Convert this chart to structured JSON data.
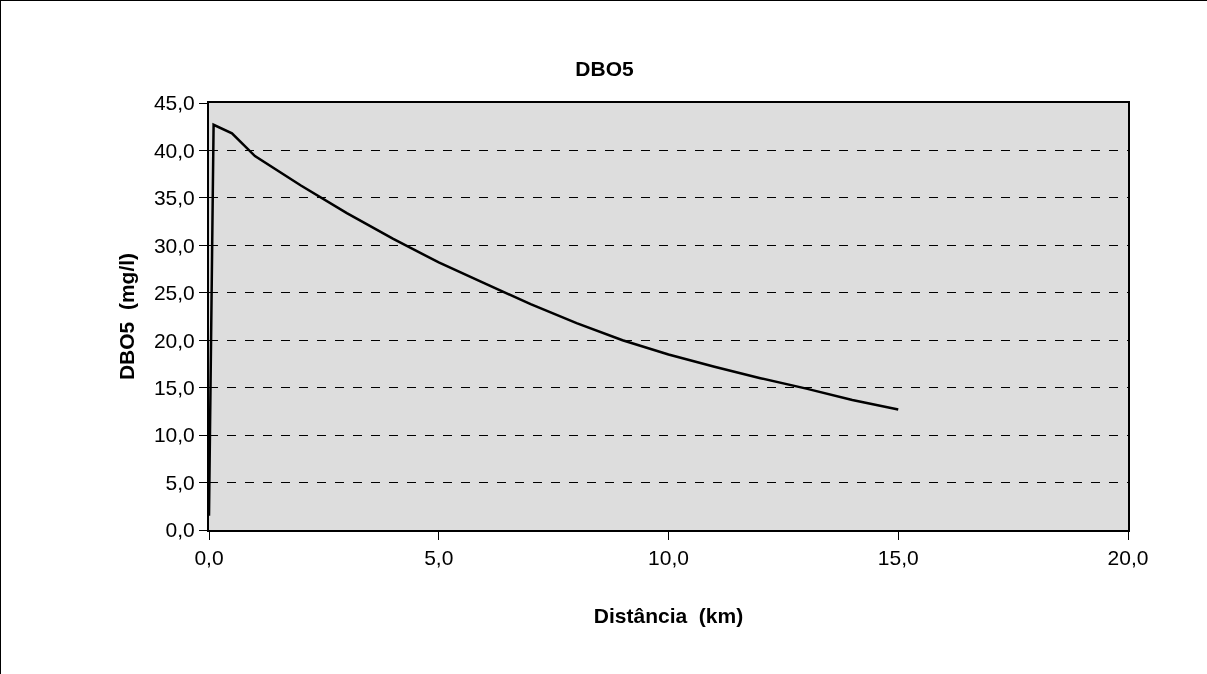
{
  "chart_data": {
    "type": "line",
    "title": "DBO5",
    "xlabel": "Distância  (km)",
    "ylabel": "DBO5  (mg/l)",
    "x": [
      0,
      0.1,
      0.5,
      1,
      2,
      3,
      4,
      5,
      6,
      7,
      8,
      9,
      10,
      11,
      12,
      13,
      14,
      15
    ],
    "series": [
      {
        "color": "#000000",
        "values": [
          1.5,
          42.7,
          41.8,
          39.4,
          36.3,
          33.4,
          30.7,
          28.2,
          26.0,
          23.8,
          21.8,
          20.0,
          18.5,
          17.2,
          16.0,
          14.9,
          13.7,
          12.7
        ]
      }
    ],
    "xlim": [
      0,
      20
    ],
    "xticks": [
      {
        "value": 0,
        "label": "0,0"
      },
      {
        "value": 5,
        "label": "5,0"
      },
      {
        "value": 10,
        "label": "10,0"
      },
      {
        "value": 15,
        "label": "15,0"
      },
      {
        "value": 20,
        "label": "20,0"
      }
    ],
    "ylim": [
      0,
      45
    ],
    "yticks": [
      {
        "value": 0,
        "label": "0,0"
      },
      {
        "value": 5,
        "label": "5,0"
      },
      {
        "value": 10,
        "label": "10,0"
      },
      {
        "value": 15,
        "label": "15,0"
      },
      {
        "value": 20,
        "label": "20,0"
      },
      {
        "value": 25,
        "label": "25,0"
      },
      {
        "value": 30,
        "label": "30,0"
      },
      {
        "value": 35,
        "label": "35,0"
      },
      {
        "value": 40,
        "label": "40,0"
      },
      {
        "value": 45,
        "label": "45,0"
      }
    ],
    "grid": "y",
    "marker": "none",
    "line_style": "solid"
  }
}
